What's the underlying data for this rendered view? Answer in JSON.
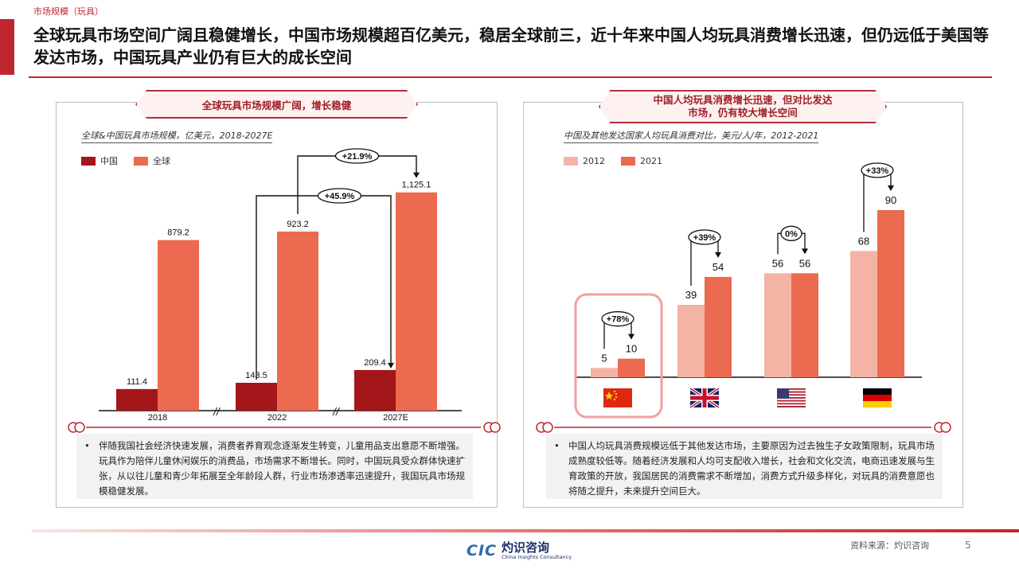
{
  "section_label": "市场规模（玩具）",
  "title": "全球玩具市场空间广阔且稳健增长，中国市场规模超百亿美元，稳居全球前三，近十年来中国人均玩具消费增长迅速，但仍远低于美国等发达市场，中国玩具产业仍有巨大的成长空间",
  "left_panel": {
    "title": "全球玩具市场规模广阔，增长稳健",
    "subtitle": "全球&中国玩具市场规模，亿美元，2018-2027E",
    "legend": [
      "中国",
      "全球"
    ],
    "growth_labels": [
      "+21.9%",
      "+45.9%"
    ],
    "bullet": "伴随我国社会经济快速发展，消费者养育观念逐渐发生转变，儿童用品支出意愿不断增强。玩具作为陪伴儿童休闲娱乐的消费品，市场需求不断增长。同时，中国玩具受众群体快速扩张，从以往儿童和青少年拓展至全年龄段人群，行业市场渗透率迅速提升，我国玩具市场规模稳健发展。"
  },
  "right_panel": {
    "title_line1": "中国人均玩具消费增长迅速，但对比发达",
    "title_line2": "市场，仍有较大增长空间",
    "subtitle": "中国及其他发达国家人均玩具消费对比，美元/人/年，2012-2021",
    "legend": [
      "2012",
      "2021"
    ],
    "bullet": "中国人均玩具消费规模远低于其他发达市场，主要原因为过去独生子女政策限制，玩具市场成熟度较低等。随着经济发展和人均可支配收入增长，社会和文化交流，电商迅速发展与生育政策的开放，我国居民的消费需求不断增加，消费方式升级多样化，对玩具的消费意愿也将随之提升，未来提升空间巨大。"
  },
  "chart_data": [
    {
      "type": "bar",
      "title": "全球&中国玩具市场规模，亿美元，2018-2027E",
      "categories": [
        "2018",
        "2022",
        "2027E"
      ],
      "series": [
        {
          "name": "中国",
          "values": [
            111.4,
            143.5,
            209.4
          ],
          "labels": [
            "111.4",
            "143.5",
            "209.4"
          ],
          "color": "#a31619"
        },
        {
          "name": "全球",
          "values": [
            879.2,
            923.2,
            1125.1
          ],
          "labels": [
            "879.2",
            "923.2",
            "1,125.1"
          ],
          "color": "#ec6a4f"
        }
      ],
      "annotations": [
        "+21.9%",
        "+45.9%"
      ],
      "ylim": [
        0,
        1200
      ],
      "legend": "top-left"
    },
    {
      "type": "bar",
      "title": "中国及其他发达国家人均玩具消费对比，美元/人/年，2012-2021",
      "categories": [
        "China",
        "UK",
        "USA",
        "Germany"
      ],
      "series": [
        {
          "name": "2012",
          "values": [
            5,
            39,
            56,
            68
          ],
          "color": "#f4b4a5"
        },
        {
          "name": "2021",
          "values": [
            10,
            54,
            56,
            90
          ],
          "color": "#ec6a4f"
        }
      ],
      "annotations": [
        "+78%",
        "+39%",
        "0%",
        "+33%"
      ],
      "ylim": [
        0,
        100
      ],
      "legend": "top-left"
    }
  ],
  "flags": [
    "china-flag-icon",
    "uk-flag-icon",
    "usa-flag-icon",
    "germany-flag-icon"
  ],
  "footer": {
    "logo_mark": "CIC",
    "logo_cn": "灼识咨询",
    "logo_en": "China Insights Consultancy",
    "source": "资料来源：灼识咨询",
    "page": "5"
  }
}
